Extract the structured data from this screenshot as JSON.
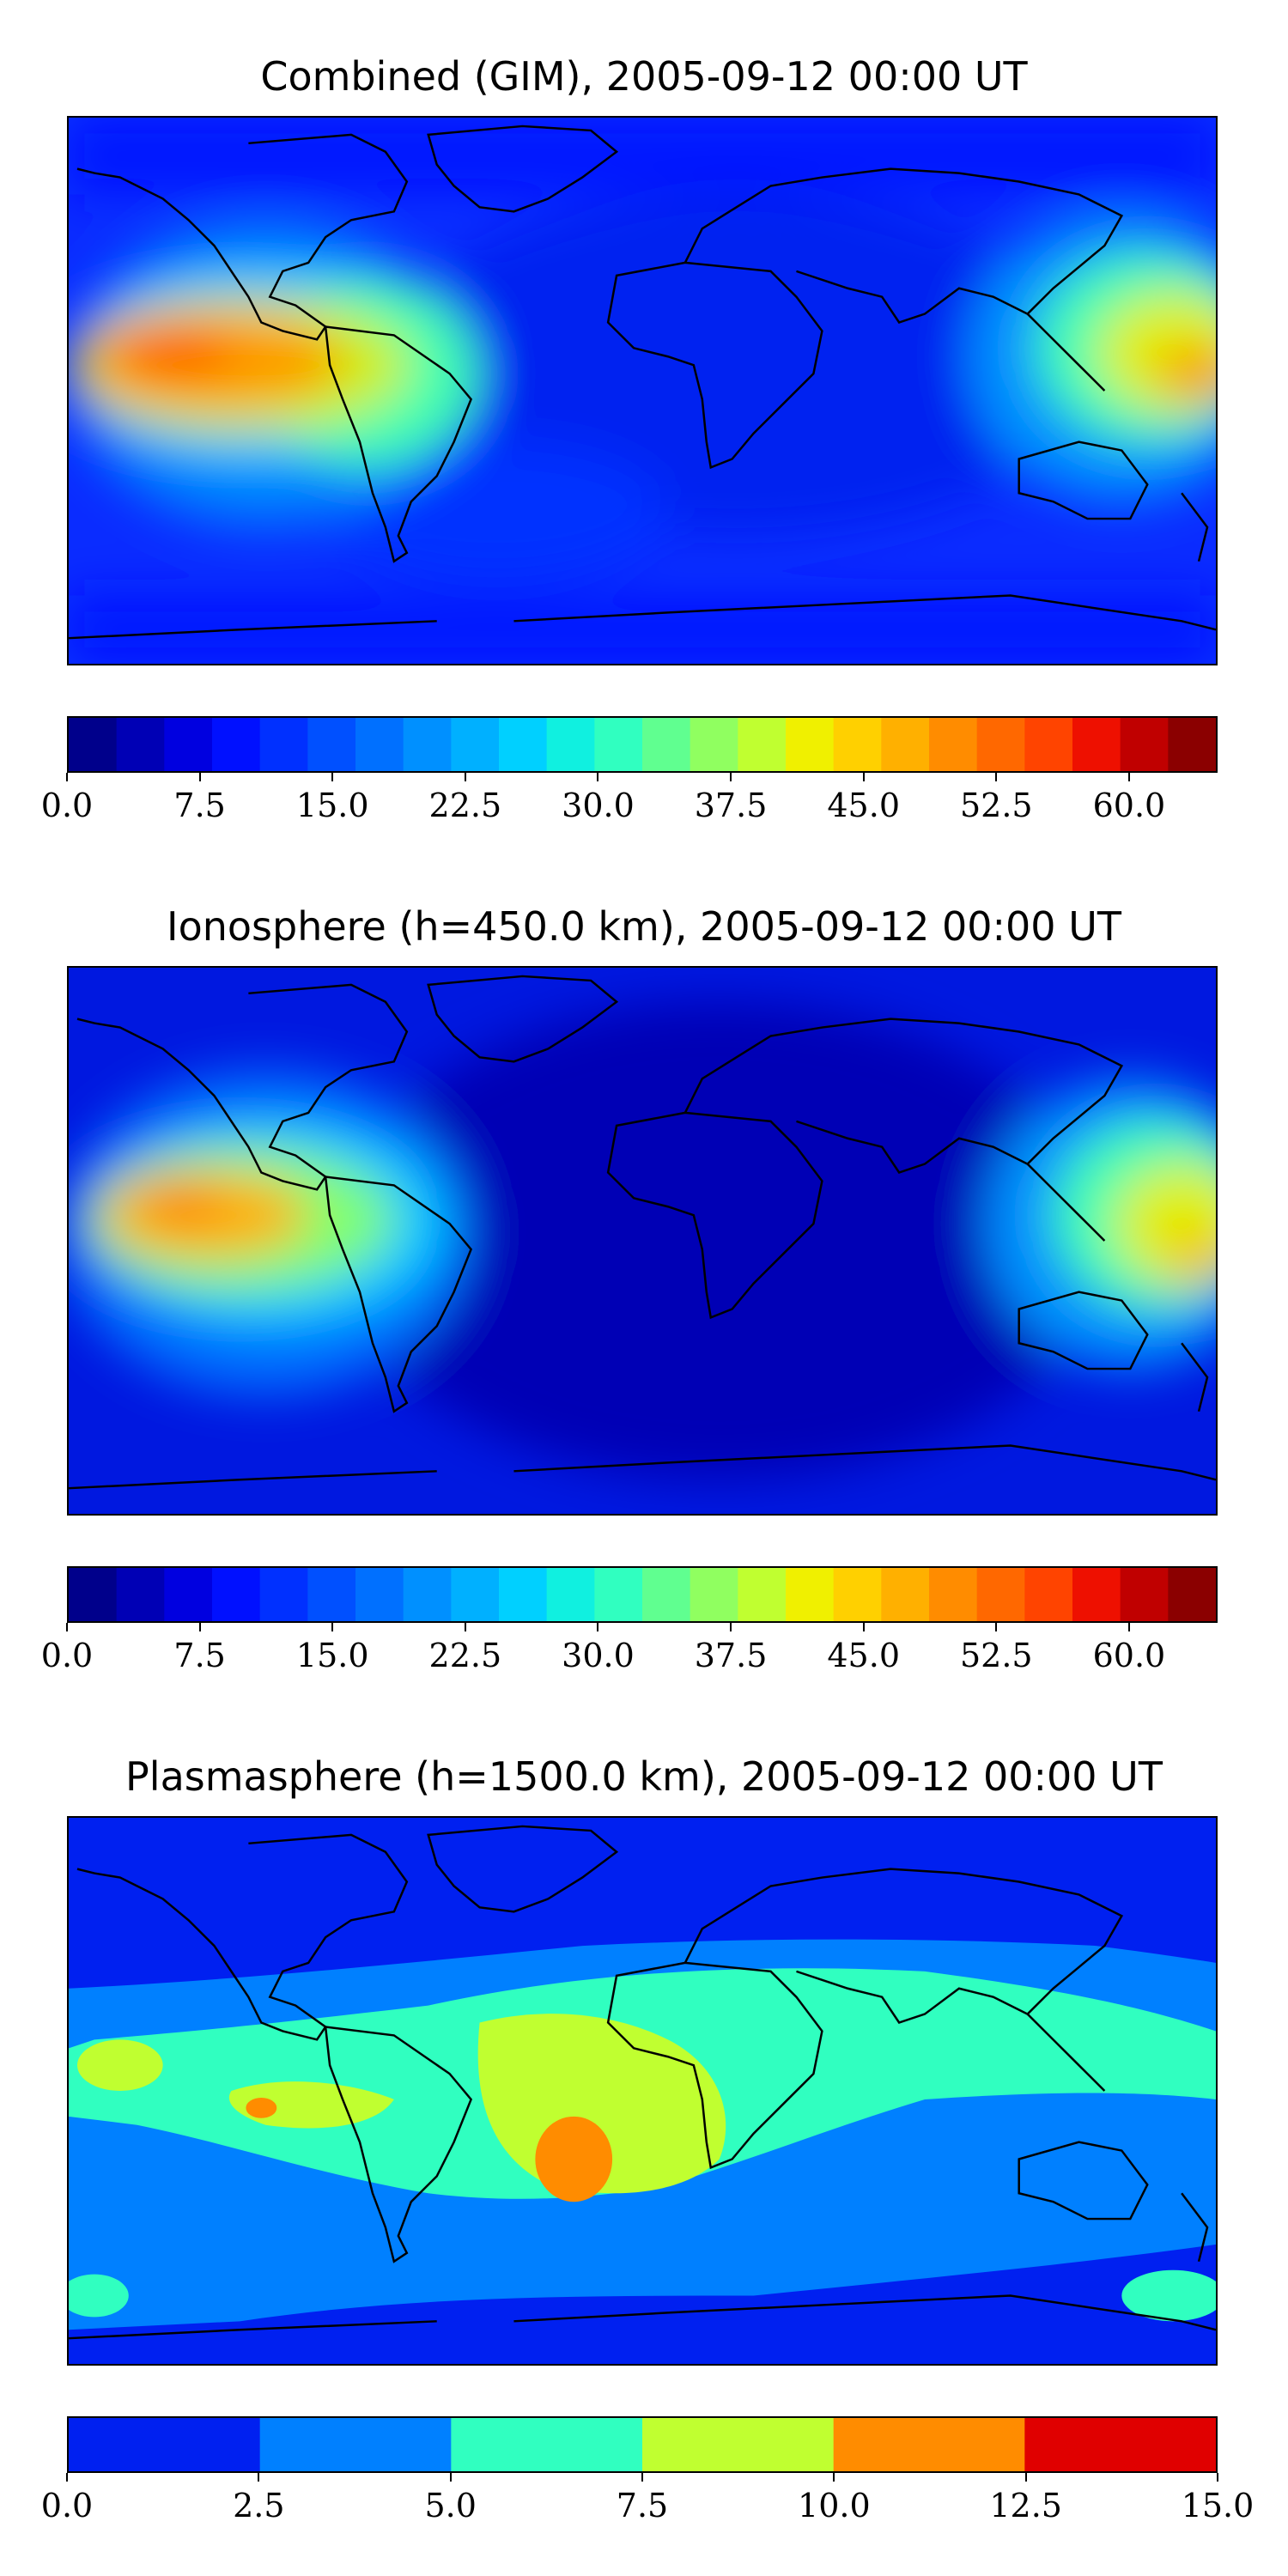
{
  "panels": [
    {
      "title": "Combined (GIM), 2005-09-12 00:00 UT",
      "colorbar": {
        "min": 0.0,
        "max": 65.0,
        "levels": 24,
        "colors": [
          "#00008b",
          "#0000b5",
          "#0000e0",
          "#0010ff",
          "#0030ff",
          "#0050ff",
          "#0070ff",
          "#0090ff",
          "#00b0ff",
          "#00d0ff",
          "#10f0e0",
          "#30ffc0",
          "#60ff90",
          "#90ff60",
          "#c0ff30",
          "#f0f000",
          "#ffd000",
          "#ffb000",
          "#ff8c00",
          "#ff6800",
          "#ff4400",
          "#ee1000",
          "#c00000",
          "#8b0000"
        ],
        "ticks": [
          "0.0",
          "7.5",
          "15.0",
          "22.5",
          "30.0",
          "37.5",
          "45.0",
          "52.5",
          "60.0"
        ],
        "tick_values": [
          0,
          7.5,
          15,
          22.5,
          30,
          37.5,
          45,
          52.5,
          60
        ]
      }
    },
    {
      "title": "Ionosphere  (h=450.0 km), 2005-09-12 00:00 UT",
      "colorbar": {
        "min": 0.0,
        "max": 65.0,
        "levels": 24,
        "colors": [
          "#00008b",
          "#0000b5",
          "#0000e0",
          "#0010ff",
          "#0030ff",
          "#0050ff",
          "#0070ff",
          "#0090ff",
          "#00b0ff",
          "#00d0ff",
          "#10f0e0",
          "#30ffc0",
          "#60ff90",
          "#90ff60",
          "#c0ff30",
          "#f0f000",
          "#ffd000",
          "#ffb000",
          "#ff8c00",
          "#ff6800",
          "#ff4400",
          "#ee1000",
          "#c00000",
          "#8b0000"
        ],
        "ticks": [
          "0.0",
          "7.5",
          "15.0",
          "22.5",
          "30.0",
          "37.5",
          "45.0",
          "52.5",
          "60.0"
        ],
        "tick_values": [
          0,
          7.5,
          15,
          22.5,
          30,
          37.5,
          45,
          52.5,
          60
        ]
      }
    },
    {
      "title": "Plasmasphere (h=1500.0 km), 2005-09-12 00:00 UT",
      "colorbar": {
        "min": 0.0,
        "max": 15.0,
        "levels": 6,
        "colors": [
          "#0020f0",
          "#0080ff",
          "#30ffc0",
          "#c0ff30",
          "#ff8c00",
          "#e00000"
        ],
        "ticks": [
          "0.0",
          "2.5",
          "5.0",
          "7.5",
          "10.0",
          "12.5",
          "15.0"
        ],
        "tick_values": [
          0,
          2.5,
          5,
          7.5,
          10,
          12.5,
          15
        ]
      }
    }
  ]
}
